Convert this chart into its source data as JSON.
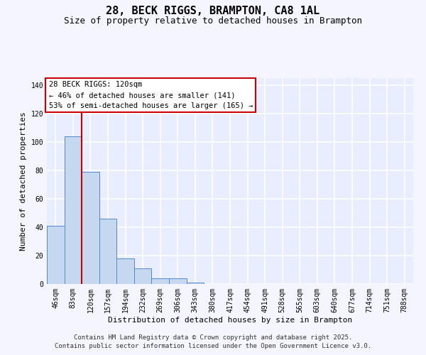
{
  "title": "28, BECK RIGGS, BRAMPTON, CA8 1AL",
  "subtitle": "Size of property relative to detached houses in Brampton",
  "xlabel": "Distribution of detached houses by size in Brampton",
  "ylabel": "Number of detached properties",
  "categories": [
    "46sqm",
    "83sqm",
    "120sqm",
    "157sqm",
    "194sqm",
    "232sqm",
    "269sqm",
    "306sqm",
    "343sqm",
    "380sqm",
    "417sqm",
    "454sqm",
    "491sqm",
    "528sqm",
    "565sqm",
    "603sqm",
    "640sqm",
    "677sqm",
    "714sqm",
    "751sqm",
    "788sqm"
  ],
  "values": [
    41,
    104,
    79,
    46,
    18,
    11,
    4,
    4,
    1,
    0,
    0,
    0,
    0,
    0,
    0,
    0,
    0,
    0,
    0,
    0,
    0
  ],
  "bar_color": "#c5d8f0",
  "bar_edge_color": "#5588cc",
  "red_line_x": 1.5,
  "red_line_color": "#cc0000",
  "annotation_line1": "28 BECK RIGGS: 120sqm",
  "annotation_line2": "← 46% of detached houses are smaller (141)",
  "annotation_line3": "53% of semi-detached houses are larger (165) →",
  "annotation_box_color": "#ffffff",
  "annotation_box_edge_color": "#cc0000",
  "ylim": [
    0,
    145
  ],
  "yticks": [
    0,
    20,
    40,
    60,
    80,
    100,
    120,
    140
  ],
  "footer_line1": "Contains HM Land Registry data © Crown copyright and database right 2025.",
  "footer_line2": "Contains public sector information licensed under the Open Government Licence v3.0.",
  "plot_bg_color": "#e8eeff",
  "fig_bg_color": "#f5f5ff",
  "grid_color": "#ffffff",
  "title_fontsize": 11,
  "subtitle_fontsize": 9,
  "xlabel_fontsize": 8,
  "ylabel_fontsize": 8,
  "tick_fontsize": 7,
  "annotation_fontsize": 7.5,
  "footer_fontsize": 6.5
}
